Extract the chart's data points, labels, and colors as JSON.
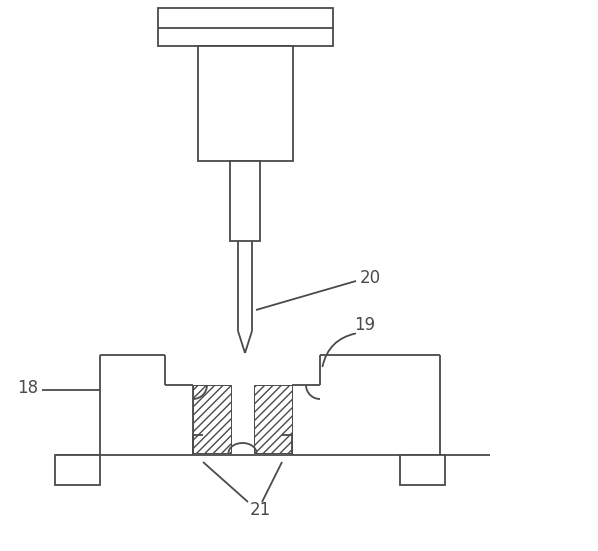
{
  "bg_color": "#ffffff",
  "line_color": "#4a4a4a",
  "lw": 1.3,
  "fig_w": 5.98,
  "fig_h": 5.51,
  "dpi": 100
}
